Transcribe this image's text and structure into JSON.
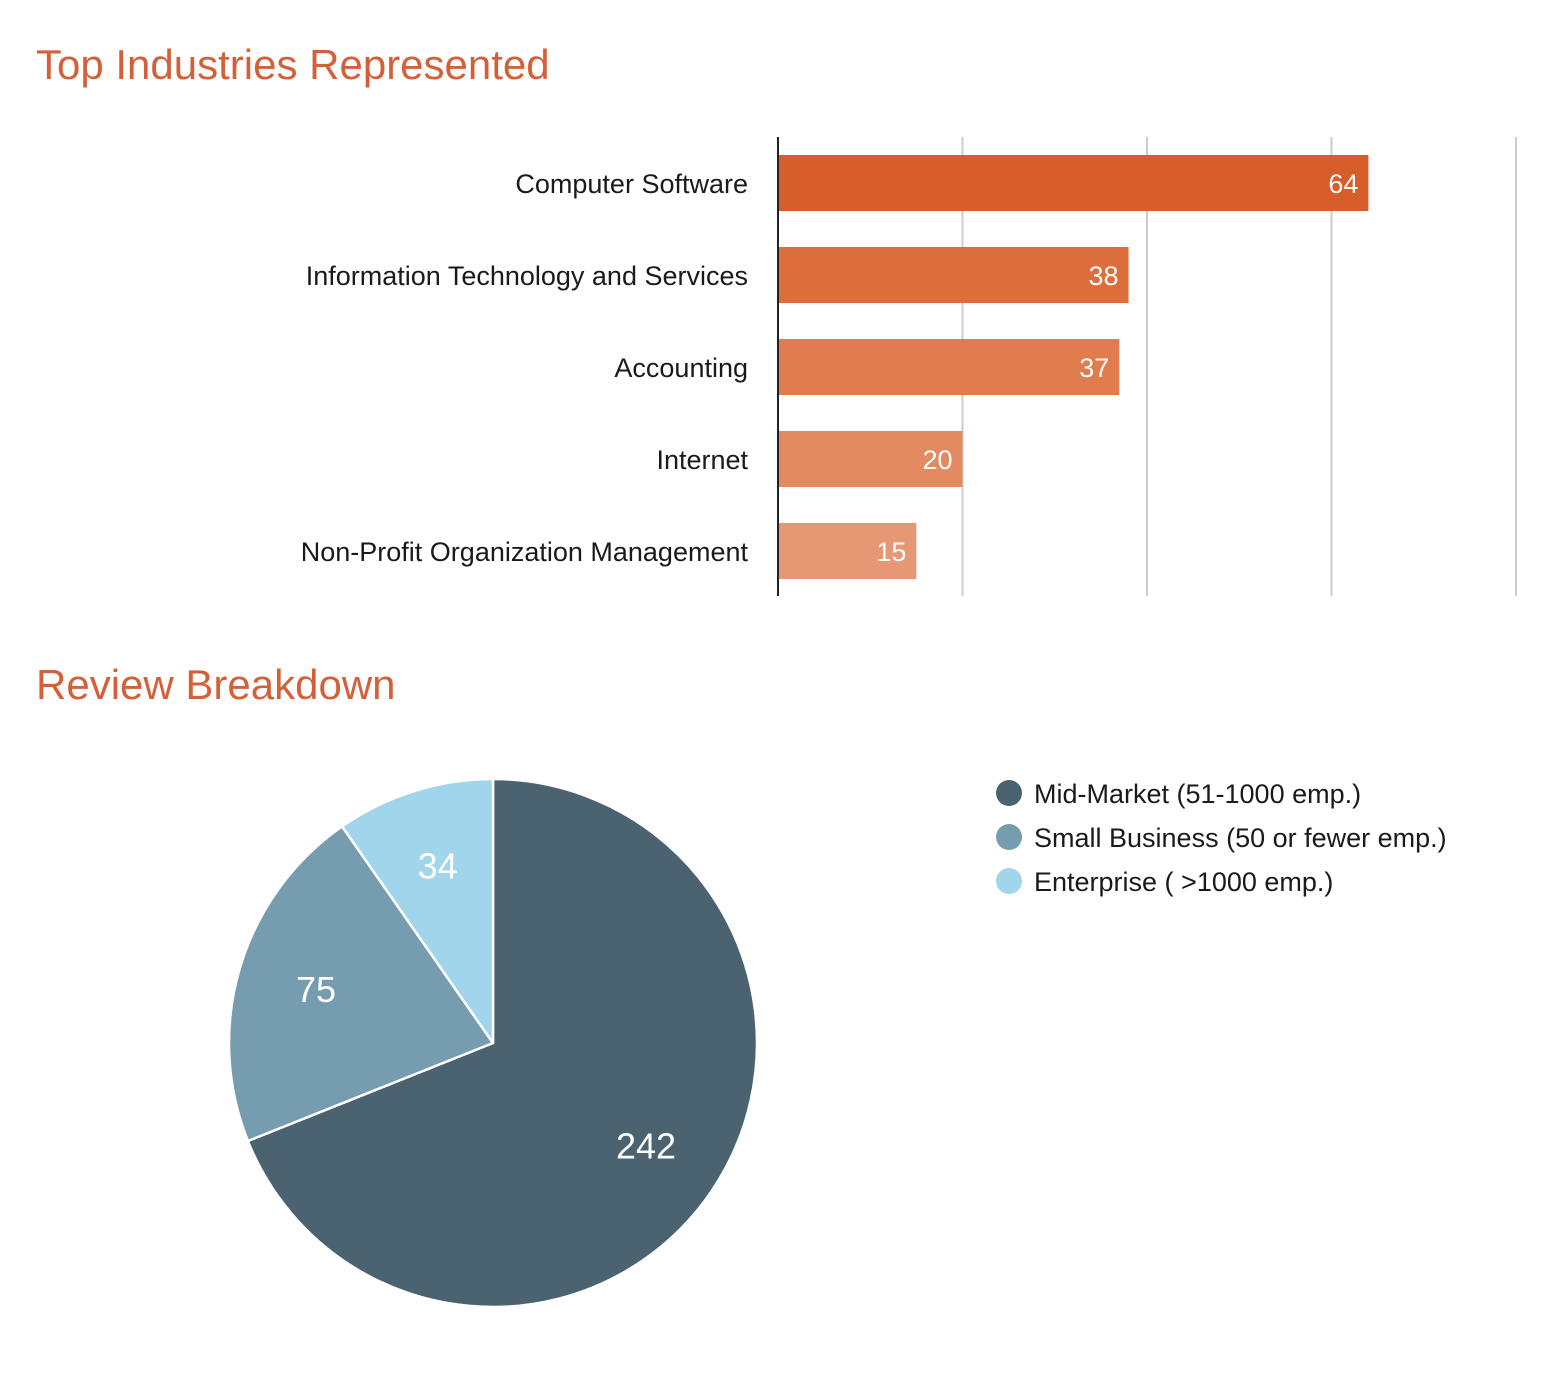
{
  "accent_color": "#d4603a",
  "industries": {
    "title": "Top Industries Represented",
    "chart_data": {
      "type": "bar",
      "orientation": "horizontal",
      "title": "Top Industries Represented",
      "categories": [
        "Computer Software",
        "Information Technology and Services",
        "Accounting",
        "Internet",
        "Non-Profit Organization Management"
      ],
      "values": [
        64,
        38,
        37,
        20,
        15
      ],
      "data_labels": [
        "64",
        "38",
        "37",
        "20",
        "15"
      ],
      "bar_colors": [
        "#d75e2a",
        "#dd6e3c",
        "#e07c4e",
        "#e38a61",
        "#e69874"
      ],
      "xlim": [
        0,
        80
      ],
      "gridlines": [
        20,
        40,
        60,
        80
      ],
      "grid": true,
      "axis_tick_labels": false
    }
  },
  "breakdown": {
    "title": "Review Breakdown",
    "chart_data": {
      "type": "pie",
      "title": "Review Breakdown",
      "slices": [
        {
          "label": "Mid-Market (51-1000 emp.)",
          "value": 242,
          "display": "242",
          "color": "#4b6270"
        },
        {
          "label": "Small Business (50 or fewer emp.)",
          "value": 75,
          "display": "75",
          "color": "#769daf"
        },
        {
          "label": "Enterprise ( >1000 emp.)",
          "value": 34,
          "display": "34",
          "color": "#a1d5ec"
        }
      ],
      "start": "12 o'clock",
      "direction": "clockwise",
      "legend_position": "right"
    }
  }
}
